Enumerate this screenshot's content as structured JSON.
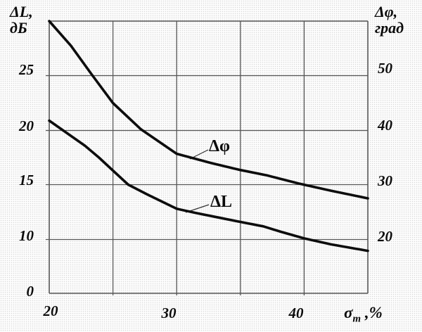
{
  "labels": {
    "left_axis_line1": "ΔL,",
    "left_axis_line2": "дБ",
    "right_axis_line1": "Δφ,",
    "right_axis_line2": "град",
    "x_axis_base": "σ",
    "x_axis_sub": "m",
    "x_axis_rest": " ,%",
    "curve_phi": "Δφ",
    "curve_L": "ΔL"
  },
  "ticks": {
    "left": [
      "25",
      "20",
      "15",
      "10",
      "0"
    ],
    "right": [
      "50",
      "40",
      "30",
      "20"
    ],
    "bottom": [
      "20",
      "30",
      "40"
    ]
  },
  "chart_data": {
    "type": "line",
    "title": "",
    "xlabel": "σm, %",
    "left_ylabel": "ΔL, дБ",
    "right_ylabel": "Δφ, град",
    "x_range": [
      20,
      45
    ],
    "x_gridline_values": [
      20,
      25,
      30,
      35,
      40,
      45
    ],
    "left_y_gridline_values": [
      0,
      10,
      15,
      20,
      25,
      30
    ],
    "right_y_gridline_values": [
      10,
      20,
      30,
      40,
      50,
      60
    ],
    "grid": true,
    "legend_position": "inline-labels",
    "series": [
      {
        "name": "Δφ",
        "axis": "right",
        "units": "град",
        "points": [
          [
            20,
            60
          ],
          [
            21.7,
            55.5
          ],
          [
            23.4,
            50
          ],
          [
            25,
            45
          ],
          [
            27.2,
            40.2
          ],
          [
            30,
            35.7
          ],
          [
            32.7,
            34
          ],
          [
            35,
            32.7
          ],
          [
            37.1,
            31.7
          ],
          [
            39.6,
            30.2
          ],
          [
            42.1,
            28.9
          ],
          [
            45,
            27.5
          ]
        ]
      },
      {
        "name": "ΔL",
        "axis": "left",
        "units": "дБ",
        "points": [
          [
            20,
            20.9
          ],
          [
            21.1,
            20
          ],
          [
            22.8,
            18.6
          ],
          [
            23.9,
            17.5
          ],
          [
            25,
            16.3
          ],
          [
            26.2,
            15
          ],
          [
            27.7,
            14.1
          ],
          [
            30,
            12.8
          ],
          [
            31.6,
            12.4
          ],
          [
            33.3,
            12
          ],
          [
            35,
            11.6
          ],
          [
            36.8,
            11.2
          ],
          [
            38.2,
            10.7
          ],
          [
            40,
            10.1
          ],
          [
            42.1,
            9.1
          ],
          [
            45,
            7.9
          ]
        ]
      }
    ]
  }
}
